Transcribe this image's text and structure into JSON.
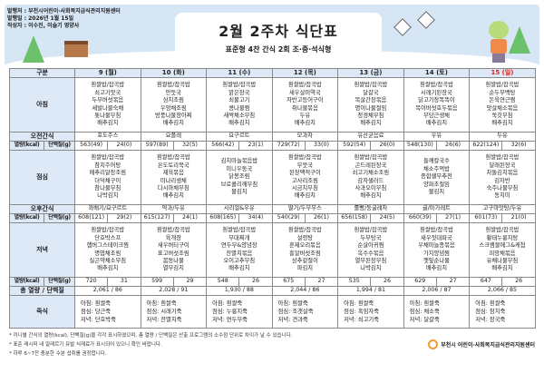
{
  "header": {
    "publisher": "발행처 : 부천시어린이·사회복지급식관리지원센터",
    "date": "발행일 : 2026년 1월 15일",
    "author": "작성자 : 이수진, 이슬기 영양사",
    "title": "2월 2주차 식단표",
    "subtitle": "표준형 4찬 간식 2회 조·중·석식형"
  },
  "table": {
    "category_label": "구분",
    "breakfast_label": "아침",
    "am_snack_label": "오전간식",
    "kcal_label": "열량(kcal)",
    "protein_label": "단백질(g)",
    "lunch_label": "점심",
    "pm_snack_label": "오후간식",
    "dinner_label": "저녁",
    "total_label": "총 열량 / 단백질",
    "porridge_label": "죽식",
    "days": [
      {
        "date": "9 (월)",
        "breakfast": [
          "흰쌀밥/잡곡밥",
          "쇠고기맛국",
          "두부버섯볶음",
          "세발나물숙채",
          "톳나물무침",
          "배추김치"
        ],
        "am_snack": "포도주스",
        "b_kcal": "563(49)",
        "b_prot": "24(0)",
        "lunch": [
          "흰쌀밥/잡곡밥",
          "참치주어탕",
          "메추리알장조림",
          "더덕채구이",
          "참나물무침",
          "나박김치"
        ],
        "pm_snack": "꽈배기/요구르트",
        "l_kcal": "608(121)",
        "l_prot": "29(2)",
        "dinner": [
          "흰쌀밥/잡곡밥",
          "단호박스프",
          "햄버그스테이크찜",
          "명엽채조림",
          "실곤약채소무침",
          "배추김치"
        ],
        "d_kcal": "720",
        "d_prot": "31",
        "total": "2,061  /  86",
        "porridge": [
          "아침: 흰쌀죽",
          "점심: 당근죽",
          "저녁: 단호박죽"
        ]
      },
      {
        "date": "10 (화)",
        "breakfast": [
          "흰쌀밥/잡곡밥",
          "만둣국",
          "삼치조림",
          "우엉채조림",
          "방풍나물장아찌",
          "배추김치"
        ],
        "am_snack": "요플레",
        "b_kcal": "597(89)",
        "b_prot": "32(5)",
        "lunch": [
          "흰쌀밥/잡곡밥",
          "온도토리묵국",
          "제육볶음",
          "미나리생채",
          "다시마채무침",
          "배추김치"
        ],
        "pm_snack": "약과/두유",
        "l_kcal": "615(127)",
        "l_prot": "24(1)",
        "dinner": [
          "흰쌀밥/잡곡밥",
          "육개장",
          "새우버터구이",
          "표고버섯조림",
          "봄동나물",
          "열무김치"
        ],
        "d_kcal": "599",
        "d_prot": "29",
        "total": "2,028  /  91",
        "porridge": [
          "아침: 흰쌀죽",
          "점심: 시래기죽",
          "저녁: 잔멸치죽"
        ]
      },
      {
        "date": "11 (수)",
        "breakfast": [
          "흰쌀밥/잡곡밥",
          "맑은장국",
          "쇠불고기",
          "콩나물찜",
          "새싹채소무침",
          "배추김치"
        ],
        "am_snack": "요구르트",
        "b_kcal": "566(42)",
        "b_prot": "23(1)",
        "lunch": [
          "김치마늘볶음밥",
          "미니우동국",
          "닭봉조림",
          "브로콜리깨무침",
          "물김치"
        ],
        "pm_snack": "시리얼&우유",
        "l_kcal": "608(165)",
        "l_prot": "34(4)",
        "dinner": [
          "흰쌀밥/잡곡밥",
          "부대찌개",
          "연두부&양념장",
          "잔멸치볶음",
          "오이고추무침",
          "배추김치"
        ],
        "d_kcal": "548",
        "d_prot": "26",
        "total": "1,930  /  88",
        "porridge": [
          "아침: 흰쌀죽",
          "점심: 누룽지죽",
          "저녁: 연두부죽"
        ]
      },
      {
        "date": "12 (목)",
        "breakfast": [
          "흰쌀밥/잡곡밥",
          "새우살미역국",
          "자반고등어구이",
          "취나물볶음",
          "두유",
          "배추김치"
        ],
        "am_snack": "모과차",
        "b_kcal": "729(72)",
        "b_prot": "33(0)",
        "lunch": [
          "흰쌀밥/잡곡밥",
          "무뭇국",
          "된장맥적구이",
          "고사리조림",
          "시금치무침",
          "배추김치"
        ],
        "pm_snack": "딸기/두부무스",
        "l_kcal": "540(29)",
        "l_prot": "26(1)",
        "dinner": [
          "흰쌀밥/잡곡밥",
          "설렁탕",
          "훈제오리볶음",
          "흥알버섯조림",
          "상추겉절이",
          "파김치"
        ],
        "d_kcal": "675",
        "d_prot": "27",
        "total": "2,044  /  86",
        "porridge": [
          "아침: 흰쌀죽",
          "점심: 조갯살죽",
          "저녁: 견과죽"
        ]
      },
      {
        "date": "13 (금)",
        "breakfast": [
          "흰쌀밥/잡곡밥",
          "달걀국",
          "목살간장볶음",
          "명이나물절임",
          "청경채무침",
          "배추김치"
        ],
        "am_snack": "유산균음료",
        "b_kcal": "592(54)",
        "b_prot": "26(0)",
        "lunch": [
          "흰쌀밥/잡곡밥",
          "곤드레된장국",
          "쇠고기채소조림",
          "감자샐러드",
          "사과오이무침",
          "배추김치"
        ],
        "pm_snack": "롤빵/둥굴레차",
        "l_kcal": "656(158)",
        "l_prot": "24(5)",
        "dinner": [
          "흰쌀밥/잡곡밥",
          "두부탕국",
          "순살아귀찜",
          "옥수수볶음",
          "열무된장무침",
          "나박김치"
        ],
        "d_kcal": "535",
        "d_prot": "26",
        "total": "1,994  /  81",
        "porridge": [
          "아침: 흰쌀죽",
          "점심: 흑임자죽",
          "저녁: 쇠고기죽"
        ]
      },
      {
        "date": "14 (토)",
        "breakfast": [
          "흰쌀밥/잡곡밥",
          "시래기된장국",
          "닭고기장똑똑이",
          "목이버섯호두볶음",
          "무당근생채",
          "배추김치"
        ],
        "am_snack": "우유",
        "b_kcal": "548(130)",
        "b_prot": "26(6)",
        "lunch": [
          "들깨칼국수",
          "채소주먹밥",
          "종합샐부추전",
          "양파초절임",
          "물김치"
        ],
        "pm_snack": "귤/마가레트",
        "l_kcal": "660(39)",
        "l_prot": "27(1)",
        "dinner": [
          "흰쌀밥/잡곡밥",
          "새우젓대파국",
          "우채마늘종볶음",
          "가지양념찜",
          "깻잎순나물",
          "배추김치"
        ],
        "d_kcal": "629",
        "d_prot": "27",
        "total": "2,006  /  87",
        "porridge": [
          "아침: 흰쌀죽",
          "점심: 채소죽",
          "저녁: 달걀죽"
        ]
      },
      {
        "date": "15 (일)",
        "breakfast": [
          "흰쌀밥/잡곡밥",
          "순두부백탕",
          "돈육연근찜",
          "맛살채소볶음",
          "쑥갓무침",
          "배추김치"
        ],
        "am_snack": "두유",
        "b_kcal": "622(124)",
        "b_prot": "32(6)",
        "lunch": [
          "흰쌀밥/잡곡밥",
          "달래된장국",
          "차돌김치볶음",
          "김자반",
          "숙주나물무침",
          "동치미"
        ],
        "pm_snack": "고구마맛탕/두유",
        "l_kcal": "601(73)",
        "l_prot": "21(0)",
        "dinner": [
          "흰쌀밥/잡곡밥",
          "황태누룽지탕",
          "스크램블에그&케첩",
          "피망채볶음",
          "유채나물무침",
          "배추김치"
        ],
        "d_kcal": "647",
        "d_prot": "26",
        "total": "2,066  /  85",
        "porridge": [
          "아침: 흰쌀죽",
          "점심: 참치죽",
          "저녁: 장국죽"
        ]
      }
    ]
  },
  "notes": [
    "* 끼니별 간식의 열량(kcal), 단백질(g)을 각각 표시하였으며, 총 열량 / 단백질은 산출 프로그램의 소수점 단위로 차이가 날 수 있습니다.",
    "* 표준 레시피 내 알레르기 유발 식재료가 표시되어 있으니 확인 바랍니다.",
    "* 하루 6~7잔 충분한 수분 섭취를 권장합니다."
  ],
  "footer_logo": "부천시 어린이·사회복지급식관리지원센터",
  "colors": {
    "header_bg": "#dde9f6",
    "sunday": "#e02020",
    "banner": "#d6e6f5"
  }
}
